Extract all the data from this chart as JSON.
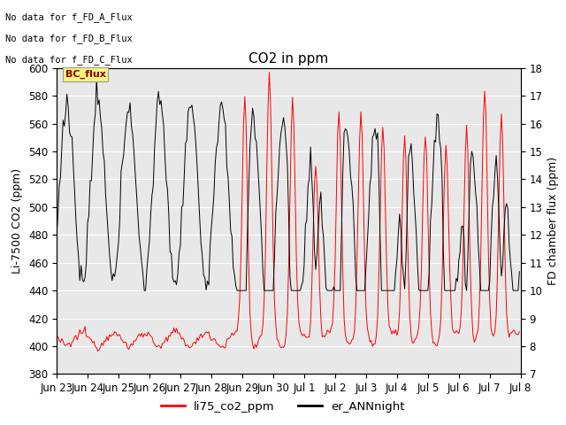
{
  "title": "CO2 in ppm",
  "ylabel_left": "Li-7500 CO2 (ppm)",
  "ylabel_right": "FD chamber flux (ppm)",
  "ylim_left": [
    380,
    600
  ],
  "ylim_right": [
    7.0,
    18.0
  ],
  "yticks_left": [
    380,
    400,
    420,
    440,
    460,
    480,
    500,
    520,
    540,
    560,
    580,
    600
  ],
  "yticks_right": [
    7.0,
    8.0,
    9.0,
    10.0,
    11.0,
    12.0,
    13.0,
    14.0,
    15.0,
    16.0,
    17.0,
    18.0
  ],
  "legend_labels": [
    "li75_co2_ppm",
    "er_ANNnight"
  ],
  "legend_colors": [
    "red",
    "black"
  ],
  "no_data_texts": [
    "No data for f_FD_A_Flux",
    "No data for f_FD_B_Flux",
    "No data for f_FD_C_Flux"
  ],
  "bc_flux_label": "BC_flux",
  "plot_bg_color": "#e8e8e8",
  "grid_color": "white",
  "title_fontsize": 11,
  "axis_label_fontsize": 9,
  "tick_fontsize": 8.5
}
